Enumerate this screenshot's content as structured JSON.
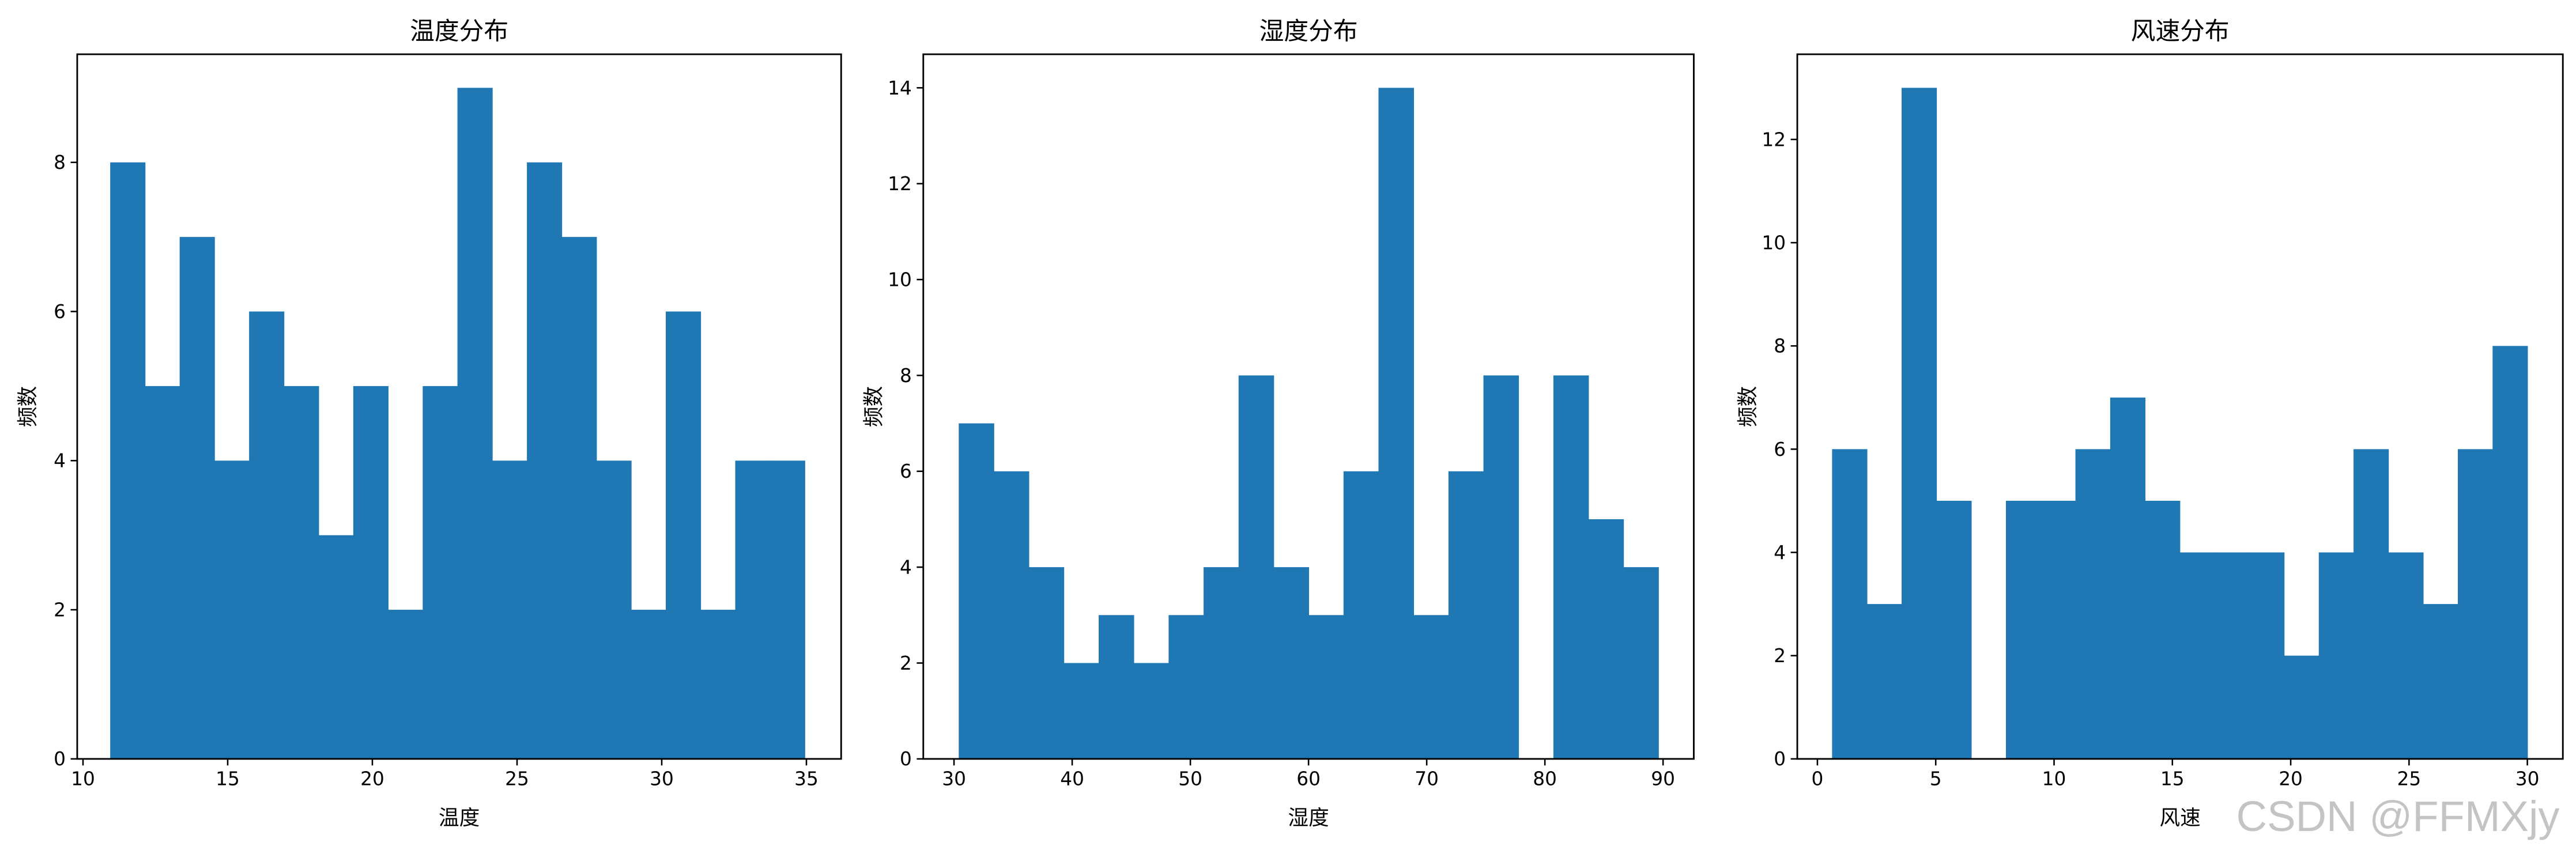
{
  "chart_data": [
    {
      "type": "bar",
      "title": "温度分布",
      "xlabel": "温度",
      "ylabel": "频数",
      "bin_range": [
        10.94,
        34.94
      ],
      "values": [
        8,
        5,
        7,
        4,
        6,
        5,
        3,
        5,
        2,
        5,
        9,
        4,
        8,
        7,
        4,
        2,
        6,
        2,
        4,
        4
      ],
      "xlim": [
        9.8,
        36.2
      ],
      "ylim": [
        0,
        9.45
      ],
      "xticks": [
        10,
        15,
        20,
        25,
        30,
        35
      ],
      "yticks": [
        0,
        2,
        4,
        6,
        8
      ],
      "grid": false
    },
    {
      "type": "bar",
      "title": "湿度分布",
      "xlabel": "湿度",
      "ylabel": "频数",
      "bin_range": [
        30.4,
        89.6
      ],
      "values": [
        7,
        6,
        4,
        2,
        3,
        2,
        3,
        4,
        8,
        4,
        3,
        6,
        14,
        3,
        6,
        8,
        0,
        8,
        5,
        4
      ],
      "xlim": [
        27.4,
        92.6
      ],
      "ylim": [
        0,
        14.7
      ],
      "xticks": [
        30,
        40,
        50,
        60,
        70,
        80,
        90
      ],
      "yticks": [
        0,
        2,
        4,
        6,
        8,
        10,
        12,
        14
      ],
      "grid": false
    },
    {
      "type": "bar",
      "title": "风速分布",
      "xlabel": "风速",
      "ylabel": "频数",
      "bin_range": [
        0.62,
        30.0
      ],
      "values": [
        6,
        3,
        13,
        5,
        0,
        5,
        5,
        6,
        7,
        5,
        4,
        4,
        4,
        2,
        4,
        6,
        4,
        3,
        6,
        8
      ],
      "xlim": [
        -0.85,
        31.5
      ],
      "ylim": [
        0,
        13.65
      ],
      "xticks": [
        0,
        5,
        10,
        15,
        20,
        25,
        30
      ],
      "yticks": [
        0,
        2,
        4,
        6,
        8,
        10,
        12
      ],
      "grid": false
    }
  ],
  "colors": {
    "bar": "#1f77b4"
  },
  "watermark": "CSDN @FFMXjy"
}
